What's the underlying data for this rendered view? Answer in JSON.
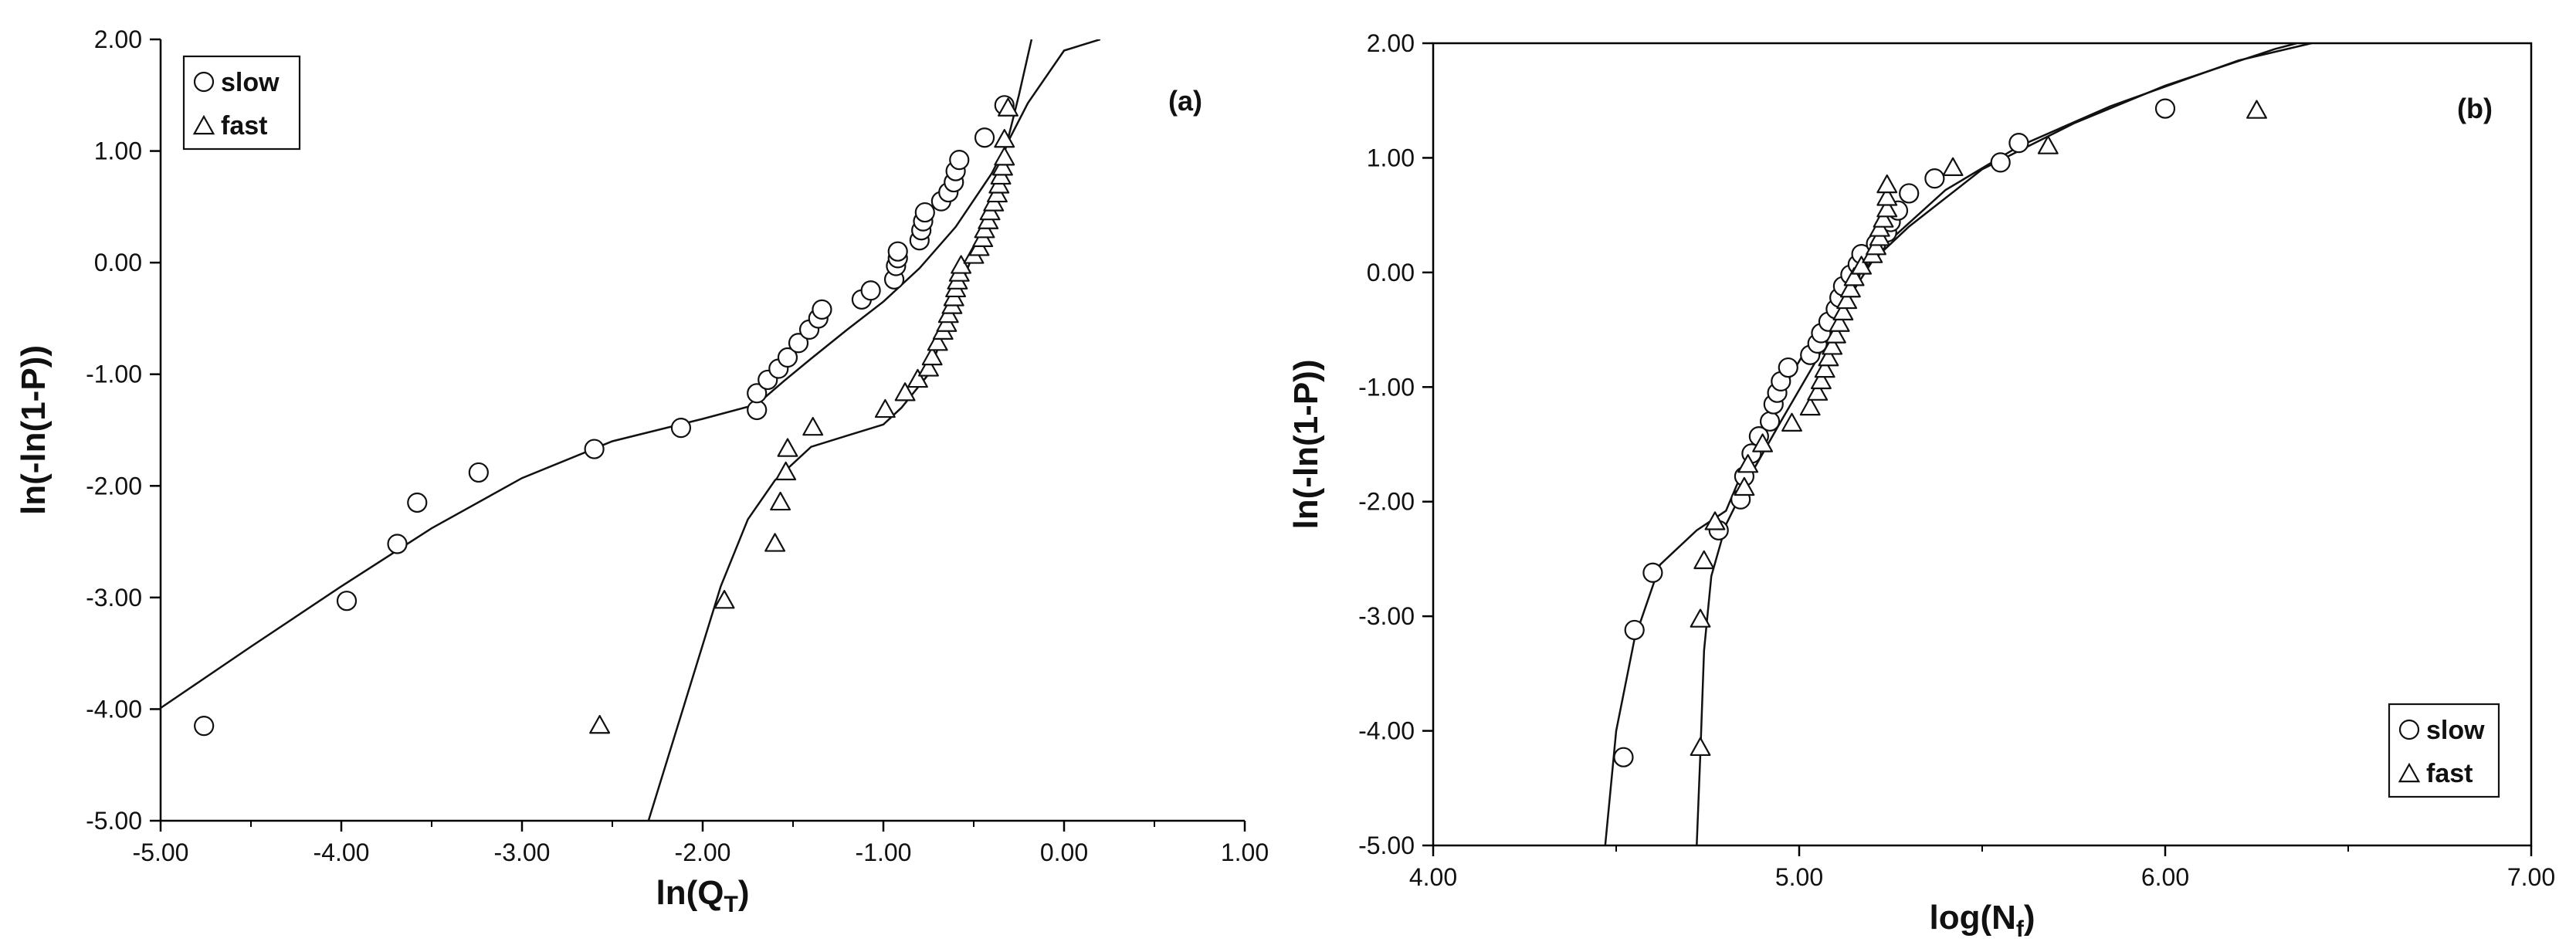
{
  "chart_data": [
    {
      "type": "scatter",
      "panel_label": "(a)",
      "xlabel": "ln(Q",
      "xlabel_sub": "T",
      "xlabel_end": ")",
      "ylabel": "ln(-ln(1-P))",
      "xlim": [
        -5.0,
        1.0
      ],
      "ylim": [
        -5.0,
        2.0
      ],
      "xticks": [
        -5,
        -4,
        -3,
        -2,
        -1,
        0,
        1
      ],
      "yticks": [
        -5,
        -4,
        -3,
        -2,
        -1,
        0,
        1,
        2
      ],
      "xtick_labels": [
        "-5.00",
        "-4.00",
        "-3.00",
        "-2.00",
        "-1.00",
        "0.00",
        "1.00"
      ],
      "ytick_labels": [
        "-5.00",
        "-4.00",
        "-3.00",
        "-2.00",
        "-1.00",
        "0.00",
        "1.00",
        "2.00"
      ],
      "grid": false,
      "legend_position": "top-left",
      "series": [
        {
          "name": "slow",
          "marker": "circle",
          "points": [
            [
              -4.76,
              -4.15
            ],
            [
              -3.97,
              -3.03
            ],
            [
              -3.69,
              -2.52
            ],
            [
              -3.58,
              -2.15
            ],
            [
              -3.24,
              -1.88
            ],
            [
              -2.6,
              -1.67
            ],
            [
              -2.12,
              -1.48
            ],
            [
              -1.7,
              -1.32
            ],
            [
              -1.7,
              -1.17
            ],
            [
              -1.64,
              -1.05
            ],
            [
              -1.58,
              -0.95
            ],
            [
              -1.53,
              -0.85
            ],
            [
              -1.47,
              -0.72
            ],
            [
              -1.41,
              -0.6
            ],
            [
              -1.36,
              -0.5
            ],
            [
              -1.34,
              -0.42
            ],
            [
              -1.12,
              -0.33
            ],
            [
              -1.07,
              -0.25
            ],
            [
              -0.94,
              -0.15
            ],
            [
              -0.93,
              -0.03
            ],
            [
              -0.92,
              0.04
            ],
            [
              -0.92,
              0.1
            ],
            [
              -0.8,
              0.2
            ],
            [
              -0.79,
              0.29
            ],
            [
              -0.78,
              0.37
            ],
            [
              -0.77,
              0.45
            ],
            [
              -0.68,
              0.55
            ],
            [
              -0.64,
              0.63
            ],
            [
              -0.61,
              0.72
            ],
            [
              -0.6,
              0.82
            ],
            [
              -0.58,
              0.92
            ],
            [
              -0.44,
              1.12
            ],
            [
              -0.33,
              1.41
            ]
          ]
        },
        {
          "name": "fast",
          "marker": "triangle",
          "points": [
            [
              -2.57,
              -4.15
            ],
            [
              -1.88,
              -3.03
            ],
            [
              -1.6,
              -2.52
            ],
            [
              -1.57,
              -2.15
            ],
            [
              -1.54,
              -1.88
            ],
            [
              -1.53,
              -1.67
            ],
            [
              -1.39,
              -1.48
            ],
            [
              -0.99,
              -1.32
            ],
            [
              -0.88,
              -1.17
            ],
            [
              -0.81,
              -1.05
            ],
            [
              -0.75,
              -0.95
            ],
            [
              -0.73,
              -0.85
            ],
            [
              -0.7,
              -0.72
            ],
            [
              -0.67,
              -0.62
            ],
            [
              -0.65,
              -0.55
            ],
            [
              -0.64,
              -0.47
            ],
            [
              -0.62,
              -0.39
            ],
            [
              -0.61,
              -0.32
            ],
            [
              -0.6,
              -0.24
            ],
            [
              -0.59,
              -0.17
            ],
            [
              -0.58,
              -0.1
            ],
            [
              -0.57,
              -0.03
            ],
            [
              -0.5,
              0.06
            ],
            [
              -0.47,
              0.13
            ],
            [
              -0.45,
              0.21
            ],
            [
              -0.44,
              0.29
            ],
            [
              -0.42,
              0.37
            ],
            [
              -0.41,
              0.45
            ],
            [
              -0.39,
              0.53
            ],
            [
              -0.37,
              0.61
            ],
            [
              -0.36,
              0.69
            ],
            [
              -0.35,
              0.77
            ],
            [
              -0.34,
              0.85
            ],
            [
              -0.33,
              0.94
            ],
            [
              -0.33,
              1.1
            ],
            [
              -0.31,
              1.38
            ]
          ]
        }
      ],
      "fit_curves": [
        {
          "name": "slow",
          "points": [
            [
              -5.0,
              -3.99
            ],
            [
              -4.5,
              -3.44
            ],
            [
              -4.0,
              -2.9
            ],
            [
              -3.5,
              -2.38
            ],
            [
              -3.0,
              -1.93
            ],
            [
              -2.5,
              -1.6
            ],
            [
              -2.0,
              -1.4
            ],
            [
              -1.7,
              -1.27
            ],
            [
              -1.55,
              -1.06
            ],
            [
              -1.4,
              -0.86
            ],
            [
              -1.2,
              -0.6
            ],
            [
              -1.0,
              -0.35
            ],
            [
              -0.8,
              -0.05
            ],
            [
              -0.6,
              0.32
            ],
            [
              -0.4,
              0.8
            ],
            [
              -0.2,
              1.43
            ],
            [
              0.0,
              1.9
            ],
            [
              0.2,
              2.0
            ]
          ]
        },
        {
          "name": "fast",
          "points": [
            [
              -2.3,
              -5.0
            ],
            [
              -2.1,
              -3.95
            ],
            [
              -1.9,
              -2.9
            ],
            [
              -1.75,
              -2.3
            ],
            [
              -1.6,
              -1.95
            ],
            [
              -1.4,
              -1.65
            ],
            [
              -1.2,
              -1.55
            ],
            [
              -1.0,
              -1.45
            ],
            [
              -0.9,
              -1.3
            ],
            [
              -0.75,
              -1.0
            ],
            [
              -0.65,
              -0.55
            ],
            [
              -0.55,
              -0.12
            ],
            [
              -0.45,
              0.3
            ],
            [
              -0.35,
              0.85
            ],
            [
              -0.25,
              1.5
            ],
            [
              -0.18,
              2.0
            ]
          ]
        }
      ]
    },
    {
      "type": "scatter",
      "panel_label": "(b)",
      "xlabel": "log(N",
      "xlabel_sub": "f",
      "xlabel_end": ")",
      "ylabel": "ln(-ln(1-P))",
      "xlim": [
        4.0,
        7.0
      ],
      "ylim": [
        -5.0,
        2.0
      ],
      "xticks": [
        4,
        5,
        6,
        7
      ],
      "yticks": [
        -5,
        -4,
        -3,
        -2,
        -1,
        0,
        1,
        2
      ],
      "xtick_labels": [
        "4.00",
        "5.00",
        "6.00",
        "7.00"
      ],
      "ytick_labels": [
        "-5.00",
        "-4.00",
        "-3.00",
        "-2.00",
        "-1.00",
        "0.00",
        "1.00",
        "2.00"
      ],
      "grid": false,
      "legend_position": "bottom-right",
      "series": [
        {
          "name": "slow",
          "marker": "circle",
          "points": [
            [
              4.52,
              -4.23
            ],
            [
              4.55,
              -3.12
            ],
            [
              4.6,
              -2.62
            ],
            [
              4.78,
              -2.25
            ],
            [
              4.84,
              -1.98
            ],
            [
              4.85,
              -1.78
            ],
            [
              4.87,
              -1.58
            ],
            [
              4.89,
              -1.43
            ],
            [
              4.92,
              -1.3
            ],
            [
              4.93,
              -1.15
            ],
            [
              4.94,
              -1.05
            ],
            [
              4.95,
              -0.95
            ],
            [
              4.97,
              -0.83
            ],
            [
              5.03,
              -0.72
            ],
            [
              5.05,
              -0.62
            ],
            [
              5.06,
              -0.53
            ],
            [
              5.08,
              -0.43
            ],
            [
              5.1,
              -0.32
            ],
            [
              5.11,
              -0.22
            ],
            [
              5.12,
              -0.12
            ],
            [
              5.14,
              -0.02
            ],
            [
              5.16,
              0.07
            ],
            [
              5.17,
              0.16
            ],
            [
              5.21,
              0.25
            ],
            [
              5.24,
              0.35
            ],
            [
              5.25,
              0.44
            ],
            [
              5.27,
              0.54
            ],
            [
              5.3,
              0.69
            ],
            [
              5.37,
              0.82
            ],
            [
              5.55,
              0.96
            ],
            [
              5.6,
              1.13
            ],
            [
              6.0,
              1.43
            ]
          ]
        },
        {
          "name": "fast",
          "marker": "triangle",
          "points": [
            [
              4.73,
              -4.15
            ],
            [
              4.73,
              -3.03
            ],
            [
              4.74,
              -2.52
            ],
            [
              4.77,
              -2.18
            ],
            [
              4.85,
              -1.88
            ],
            [
              4.86,
              -1.68
            ],
            [
              4.9,
              -1.5
            ],
            [
              4.98,
              -1.32
            ],
            [
              5.03,
              -1.18
            ],
            [
              5.05,
              -1.05
            ],
            [
              5.06,
              -0.95
            ],
            [
              5.07,
              -0.85
            ],
            [
              5.08,
              -0.75
            ],
            [
              5.09,
              -0.65
            ],
            [
              5.1,
              -0.55
            ],
            [
              5.11,
              -0.45
            ],
            [
              5.12,
              -0.35
            ],
            [
              5.13,
              -0.25
            ],
            [
              5.14,
              -0.15
            ],
            [
              5.15,
              -0.05
            ],
            [
              5.17,
              0.05
            ],
            [
              5.2,
              0.15
            ],
            [
              5.21,
              0.22
            ],
            [
              5.22,
              0.3
            ],
            [
              5.22,
              0.38
            ],
            [
              5.23,
              0.46
            ],
            [
              5.24,
              0.55
            ],
            [
              5.24,
              0.65
            ],
            [
              5.24,
              0.76
            ],
            [
              5.42,
              0.91
            ],
            [
              5.68,
              1.1
            ],
            [
              6.25,
              1.41
            ]
          ]
        }
      ],
      "fit_curves": [
        {
          "name": "slow",
          "points": [
            [
              4.47,
              -5.0
            ],
            [
              4.5,
              -4.0
            ],
            [
              4.55,
              -3.2
            ],
            [
              4.62,
              -2.55
            ],
            [
              4.72,
              -2.25
            ],
            [
              4.8,
              -2.08
            ],
            [
              4.85,
              -1.7
            ],
            [
              4.95,
              -1.05
            ],
            [
              5.05,
              -0.5
            ],
            [
              5.15,
              -0.05
            ],
            [
              5.3,
              0.4
            ],
            [
              5.5,
              0.9
            ],
            [
              5.75,
              1.3
            ],
            [
              6.0,
              1.63
            ],
            [
              6.3,
              1.95
            ],
            [
              6.36,
              2.0
            ]
          ]
        },
        {
          "name": "fast",
          "points": [
            [
              4.72,
              -5.0
            ],
            [
              4.73,
              -4.2
            ],
            [
              4.74,
              -3.3
            ],
            [
              4.76,
              -2.65
            ],
            [
              4.8,
              -2.2
            ],
            [
              4.87,
              -1.75
            ],
            [
              4.95,
              -1.3
            ],
            [
              5.05,
              -0.75
            ],
            [
              5.15,
              -0.15
            ],
            [
              5.22,
              0.2
            ],
            [
              5.4,
              0.72
            ],
            [
              5.6,
              1.1
            ],
            [
              5.85,
              1.45
            ],
            [
              6.2,
              1.85
            ],
            [
              6.4,
              2.0
            ]
          ]
        }
      ]
    }
  ]
}
